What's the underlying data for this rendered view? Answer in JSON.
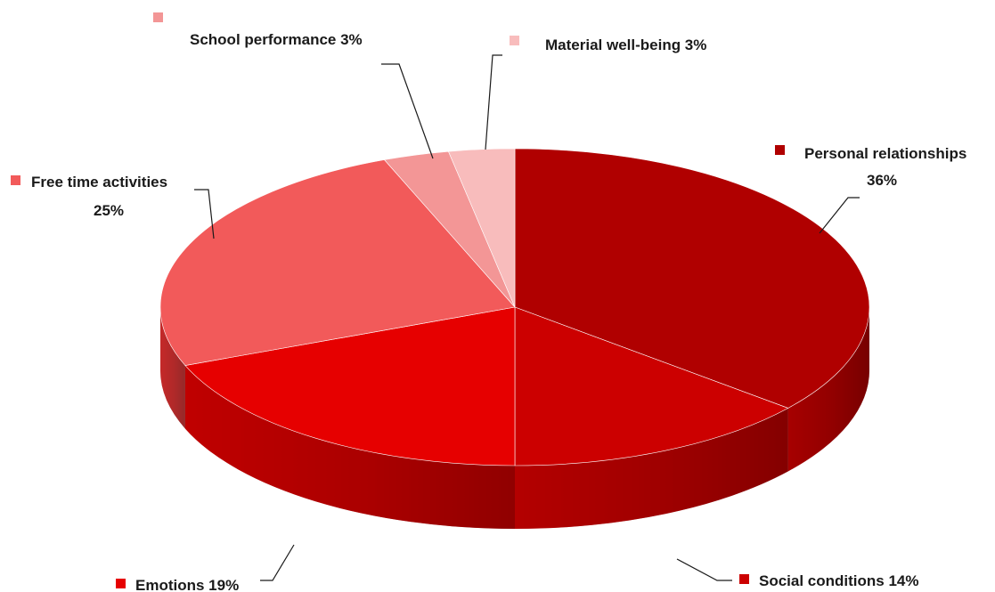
{
  "chart_data": {
    "type": "pie",
    "title": "",
    "style": "3d",
    "slices": [
      {
        "label": "Personal relationships",
        "value": 36,
        "value_text": "36%",
        "color": "#b00000"
      },
      {
        "label": "Social conditions",
        "value": 14,
        "value_text": "14%",
        "color": "#cc0000"
      },
      {
        "label": "Emotions",
        "value": 19,
        "value_text": "19%",
        "color": "#e60000"
      },
      {
        "label": "Free time activities",
        "value": 25,
        "value_text": "25%",
        "color": "#f25a5a"
      },
      {
        "label": "School performance",
        "value": 3,
        "value_text": "3%",
        "color": "#f39696"
      },
      {
        "label": "Material well-being",
        "value": 3,
        "value_text": "3%",
        "color": "#f8bcbc"
      }
    ]
  }
}
